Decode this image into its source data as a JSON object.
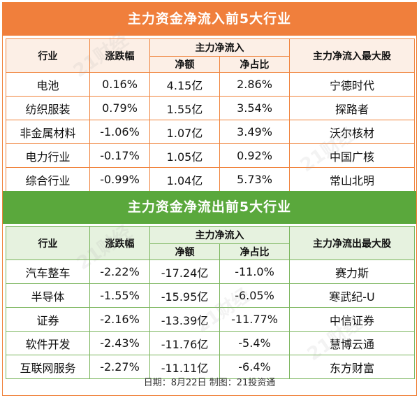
{
  "inflow": {
    "title": "主力资金净流入前5大行业",
    "headers": {
      "industry": "行业",
      "change": "涨跌幅",
      "group": "主力净流入",
      "amount": "净额",
      "ratio": "净占比",
      "top_stock": "主力净流入最大股"
    },
    "rows": [
      {
        "industry": "电池",
        "change": "0.16%",
        "amount": "4.15亿",
        "ratio": "2.86%",
        "stock": "宁德时代"
      },
      {
        "industry": "纺织服装",
        "change": "0.79%",
        "amount": "1.55亿",
        "ratio": "3.54%",
        "stock": "探路者"
      },
      {
        "industry": "非金属材料",
        "change": "-1.06%",
        "amount": "1.07亿",
        "ratio": "3.49%",
        "stock": "沃尔核材"
      },
      {
        "industry": "电力行业",
        "change": "-0.17%",
        "amount": "1.05亿",
        "ratio": "0.92%",
        "stock": "中国广核"
      },
      {
        "industry": "综合行业",
        "change": "-0.99%",
        "amount": "1.04亿",
        "ratio": "5.73%",
        "stock": "常山北明"
      }
    ]
  },
  "outflow": {
    "title": "主力资金净流出前5大行业",
    "headers": {
      "industry": "行业",
      "change": "涨跌幅",
      "group": "主力净流入",
      "amount": "净额",
      "ratio": "净占比",
      "top_stock": "主力净流出最大股"
    },
    "rows": [
      {
        "industry": "汽车整车",
        "change": "-2.22%",
        "amount": "-17.24亿",
        "ratio": "-11.0%",
        "stock": "赛力斯"
      },
      {
        "industry": "半导体",
        "change": "-1.55%",
        "amount": "-15.95亿",
        "ratio": "-6.05%",
        "stock": "寒武纪-U"
      },
      {
        "industry": "证券",
        "change": "-2.16%",
        "amount": "-13.39亿",
        "ratio": "-11.77%",
        "stock": "中信证券"
      },
      {
        "industry": "软件开发",
        "change": "-2.43%",
        "amount": "-11.76亿",
        "ratio": "-5.4%",
        "stock": "慧博云通"
      },
      {
        "industry": "互联网服务",
        "change": "-2.27%",
        "amount": "-11.11亿",
        "ratio": "-6.4%",
        "stock": "东方财富"
      }
    ]
  },
  "footer": "日期：8月22日 制图：21投资通",
  "watermark": "21财经",
  "colors": {
    "inflow_accent": "#f07f3c",
    "outflow_accent": "#5aa83c"
  }
}
